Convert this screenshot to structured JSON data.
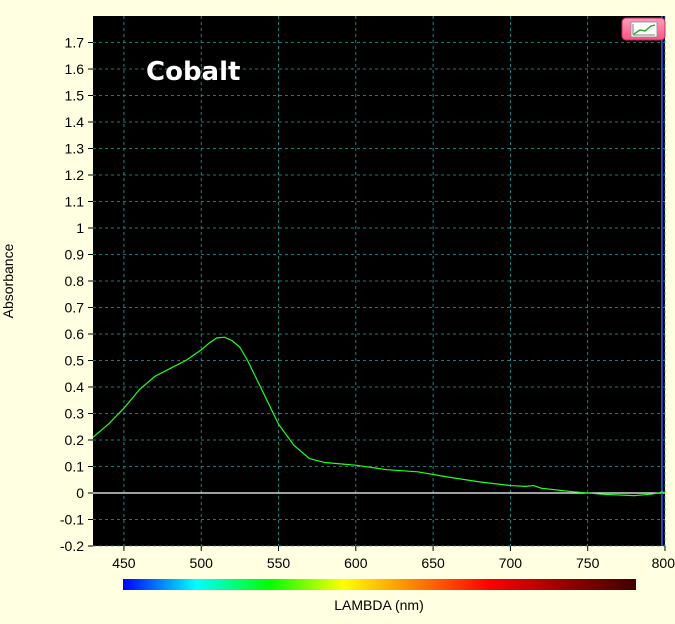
{
  "chart_data": {
    "type": "line",
    "title": "Cobalt",
    "xlabel": "LAMBDA (nm)",
    "ylabel": "Absorbance",
    "xlim": [
      430,
      800
    ],
    "ylim": [
      -0.2,
      1.8
    ],
    "xticks": [
      450,
      500,
      550,
      600,
      650,
      700,
      750,
      800
    ],
    "yticks": [
      -0.2,
      -0.1,
      0,
      0.1,
      0.2,
      0.3,
      0.4,
      0.5,
      0.6,
      0.7,
      0.8,
      0.9,
      1,
      1.1,
      1.2,
      1.3,
      1.4,
      1.5,
      1.6,
      1.7
    ],
    "grid": true,
    "series": [
      {
        "color": "#22ff22",
        "x": [
          430,
          440,
          450,
          460,
          470,
          480,
          490,
          500,
          505,
          510,
          515,
          520,
          525,
          530,
          540,
          550,
          560,
          570,
          580,
          590,
          600,
          620,
          640,
          660,
          680,
          700,
          710,
          715,
          720,
          740,
          760,
          780,
          790,
          796,
          798,
          800
        ],
        "y": [
          0.21,
          0.26,
          0.32,
          0.39,
          0.44,
          0.47,
          0.5,
          0.54,
          0.565,
          0.585,
          0.588,
          0.575,
          0.55,
          0.5,
          0.38,
          0.26,
          0.18,
          0.13,
          0.115,
          0.11,
          0.105,
          0.088,
          0.08,
          0.06,
          0.042,
          0.028,
          0.025,
          0.028,
          0.018,
          0.005,
          -0.005,
          -0.01,
          -0.005,
          0.0,
          0.005,
          0.0
        ]
      }
    ],
    "zero_line_color": "#ffffff",
    "plot_background": "#000000",
    "grid_color": "#2aa0a0",
    "marker_line": {
      "x": 798,
      "color": "#3355ff"
    },
    "colorbar": {
      "x_range": [
        450,
        780
      ],
      "stops": [
        "#0000ff",
        "#00ffff",
        "#00ff00",
        "#ffff00",
        "#ff7f00",
        "#ff0000",
        "#9a0000",
        "#400000"
      ]
    }
  },
  "page_background": "#ffffe1",
  "corner_button": {
    "icon": "chart-options-icon",
    "color": "#ff6f9f"
  }
}
